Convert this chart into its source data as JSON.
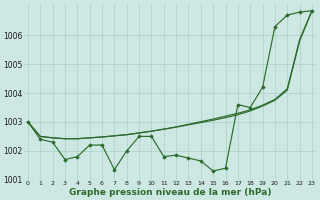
{
  "xlabel": "Graphe pression niveau de la mer (hPa)",
  "background_color": "#cde8e2",
  "grid_color": "#aed4cc",
  "line_color": "#2d6b2d",
  "x": [
    0,
    1,
    2,
    3,
    4,
    5,
    6,
    7,
    8,
    9,
    10,
    11,
    12,
    13,
    14,
    15,
    16,
    17,
    18,
    19,
    20,
    21,
    22,
    23
  ],
  "line_jagged": [
    1003.0,
    1002.4,
    1002.3,
    1001.7,
    1001.8,
    1002.2,
    1002.2,
    1001.35,
    1002.0,
    1002.5,
    1002.5,
    1001.8,
    1001.85,
    1001.75,
    1001.65,
    1001.3,
    1001.4,
    1003.6,
    1003.5,
    1004.2,
    1006.3,
    1006.7,
    1006.8,
    1006.85
  ],
  "line_trend1": [
    1003.0,
    1002.5,
    1002.45,
    1002.42,
    1002.42,
    1002.45,
    1002.48,
    1002.52,
    1002.56,
    1002.62,
    1002.68,
    1002.75,
    1002.82,
    1002.9,
    1002.98,
    1003.06,
    1003.15,
    1003.25,
    1003.38,
    1003.55,
    1003.75,
    1004.1,
    1005.8,
    1006.85
  ],
  "line_trend2": [
    1003.0,
    1002.5,
    1002.45,
    1002.42,
    1002.42,
    1002.45,
    1002.48,
    1002.52,
    1002.56,
    1002.62,
    1002.68,
    1002.75,
    1002.83,
    1002.92,
    1003.01,
    1003.1,
    1003.2,
    1003.3,
    1003.42,
    1003.58,
    1003.78,
    1004.15,
    1005.85,
    1006.85
  ],
  "ylim": [
    1001.0,
    1006.5
  ],
  "yticks": [
    1001,
    1002,
    1003,
    1004,
    1005,
    1006
  ],
  "xticks": [
    0,
    1,
    2,
    3,
    4,
    5,
    6,
    7,
    8,
    9,
    10,
    11,
    12,
    13,
    14,
    15,
    16,
    17,
    18,
    19,
    20,
    21,
    22,
    23
  ],
  "xlabel_fontsize": 6.5,
  "ytick_fontsize": 5.5,
  "xtick_fontsize": 4.5
}
